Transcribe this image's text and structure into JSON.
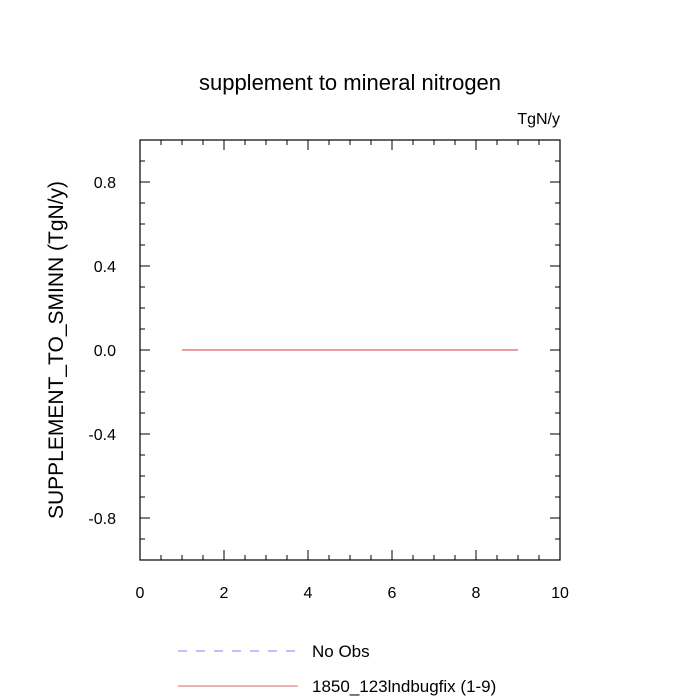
{
  "chart_data": {
    "type": "line",
    "title": "supplement to mineral nitrogen",
    "units_label": "TgN/y",
    "xlabel": "",
    "ylabel": "SUPPLEMENT_TO_SMINN  (TgN/y)",
    "xlim": [
      0,
      10
    ],
    "ylim": [
      -1,
      1
    ],
    "x_ticks": [
      0,
      2,
      4,
      6,
      8,
      10
    ],
    "x_tick_labels": [
      "0",
      "2",
      "4",
      "6",
      "8",
      "10"
    ],
    "y_ticks": [
      -0.8,
      -0.4,
      0.0,
      0.4,
      0.8
    ],
    "y_tick_labels": [
      "-0.8",
      "-0.4",
      "0.0",
      "0.4",
      "0.8"
    ],
    "grid": false,
    "legend_position": "bottom",
    "series": [
      {
        "name": "No Obs",
        "color": "#8080ff",
        "style": "dashed",
        "x": [],
        "values": []
      },
      {
        "name": "1850_123lndbugfix (1-9)",
        "color": "#e06060",
        "style": "solid",
        "x": [
          1,
          2,
          3,
          4,
          5,
          6,
          7,
          8,
          9
        ],
        "values": [
          0,
          0,
          0,
          0,
          0,
          0,
          0,
          0,
          0
        ]
      }
    ]
  }
}
